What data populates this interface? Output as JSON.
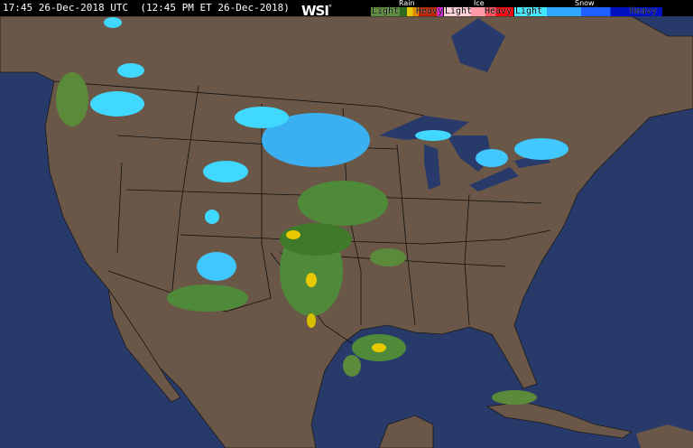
{
  "header": {
    "timestamp": "17:45 26-Dec-2018 UTC  (12:45 PM ET 26-Dec-2018)",
    "logo": "WSI",
    "logo_mark": "°"
  },
  "legend": {
    "rain": {
      "title": "Rain",
      "light": "Light",
      "heavy": "Heavy",
      "colors": [
        "#5a8a3a",
        "#2e6a1e",
        "#e8c800",
        "#e08a00",
        "#c02000",
        "#e020e0"
      ]
    },
    "ice": {
      "title": "Ice",
      "light": "Light",
      "heavy": "Heavy",
      "colors": [
        "#ffd0d8",
        "#ff9aa8",
        "#ff5060",
        "#ff0010"
      ]
    },
    "snow": {
      "title": "Snow",
      "light": "Light",
      "heavy": "Heavy",
      "colors": [
        "#40e8ff",
        "#30a8ff",
        "#2060ff",
        "#0010c0"
      ]
    }
  },
  "map": {
    "ocean_color": "#283a6a",
    "land_color": "#6b5747",
    "border_color": "#000000"
  }
}
